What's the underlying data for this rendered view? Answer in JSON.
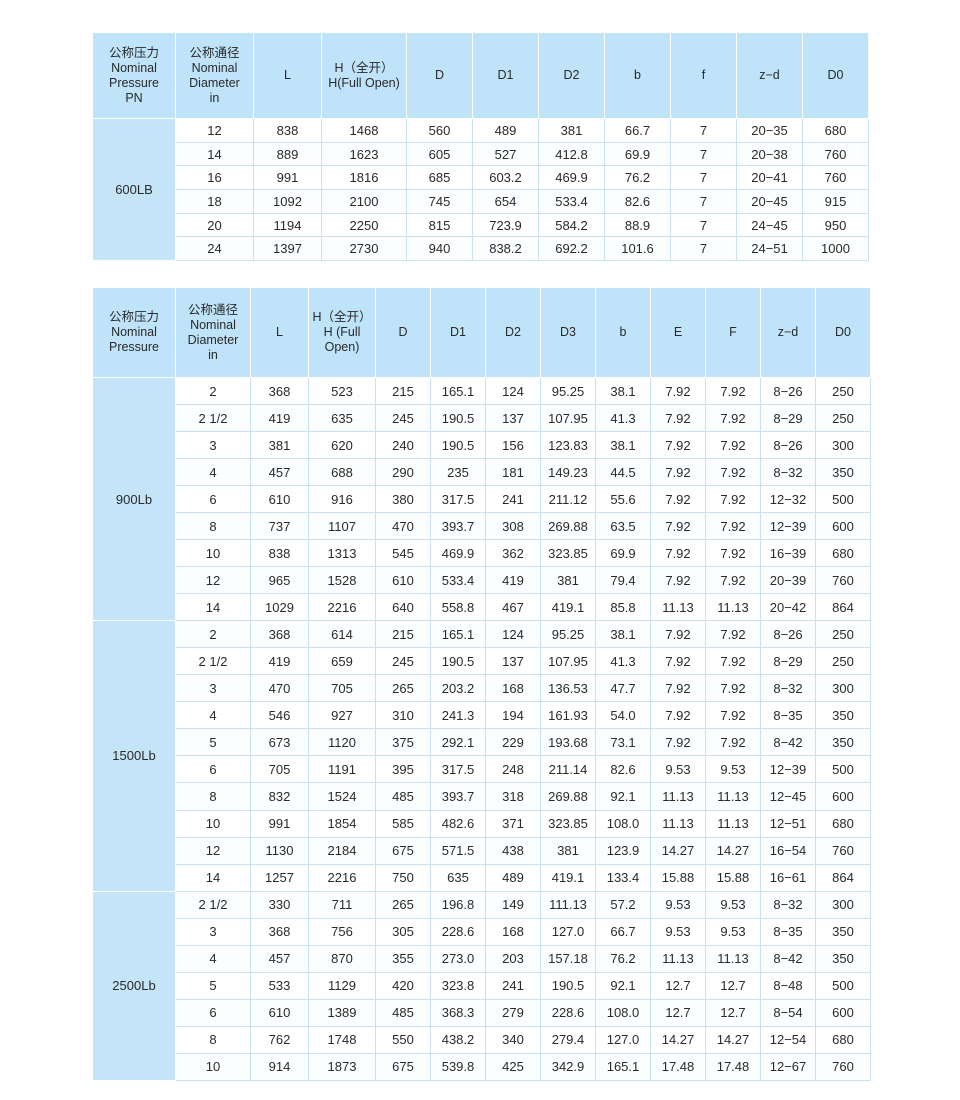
{
  "tables": [
    {
      "headers": [
        [
          "公称压力",
          "Nominal",
          "Pressure",
          "PN"
        ],
        [
          "公称通径",
          "Nominal",
          "Diameter",
          "in"
        ],
        [
          "L"
        ],
        [
          "H（全开）",
          "H(Full Open)"
        ],
        [
          "D"
        ],
        [
          "D1"
        ],
        [
          "D2"
        ],
        [
          "b"
        ],
        [
          "f"
        ],
        [
          "z−d"
        ],
        [
          "D0"
        ]
      ],
      "groups": [
        {
          "label": "600LB",
          "rows": [
            [
              "12",
              "838",
              "1468",
              "560",
              "489",
              "381",
              "66.7",
              "7",
              "20−35",
              "680"
            ],
            [
              "14",
              "889",
              "1623",
              "605",
              "527",
              "412.8",
              "69.9",
              "7",
              "20−38",
              "760"
            ],
            [
              "16",
              "991",
              "1816",
              "685",
              "603.2",
              "469.9",
              "76.2",
              "7",
              "20−41",
              "760"
            ],
            [
              "18",
              "1092",
              "2100",
              "745",
              "654",
              "533.4",
              "82.6",
              "7",
              "20−45",
              "915"
            ],
            [
              "20",
              "1194",
              "2250",
              "815",
              "723.9",
              "584.2",
              "88.9",
              "7",
              "24−45",
              "950"
            ],
            [
              "24",
              "1397",
              "2730",
              "940",
              "838.2",
              "692.2",
              "101.6",
              "7",
              "24−51",
              "1000"
            ]
          ]
        }
      ]
    },
    {
      "headers": [
        [
          "公称压力",
          "Nominal",
          "Pressure"
        ],
        [
          "公称通径",
          "Nominal",
          "Diameter",
          "in"
        ],
        [
          "L"
        ],
        [
          "H（全开）",
          "H (Full",
          "Open)"
        ],
        [
          "D"
        ],
        [
          "D1"
        ],
        [
          "D2"
        ],
        [
          "D3"
        ],
        [
          "b"
        ],
        [
          "E"
        ],
        [
          "F"
        ],
        [
          "z−d"
        ],
        [
          "D0"
        ]
      ],
      "groups": [
        {
          "label": "900Lb",
          "rows": [
            [
              "2",
              "368",
              "523",
              "215",
              "165.1",
              "124",
              "95.25",
              "38.1",
              "7.92",
              "7.92",
              "8−26",
              "250"
            ],
            [
              "2 1/2",
              "419",
              "635",
              "245",
              "190.5",
              "137",
              "107.95",
              "41.3",
              "7.92",
              "7.92",
              "8−29",
              "250"
            ],
            [
              "3",
              "381",
              "620",
              "240",
              "190.5",
              "156",
              "123.83",
              "38.1",
              "7.92",
              "7.92",
              "8−26",
              "300"
            ],
            [
              "4",
              "457",
              "688",
              "290",
              "235",
              "181",
              "149.23",
              "44.5",
              "7.92",
              "7.92",
              "8−32",
              "350"
            ],
            [
              "6",
              "610",
              "916",
              "380",
              "317.5",
              "241",
              "211.12",
              "55.6",
              "7.92",
              "7.92",
              "12−32",
              "500"
            ],
            [
              "8",
              "737",
              "1107",
              "470",
              "393.7",
              "308",
              "269.88",
              "63.5",
              "7.92",
              "7.92",
              "12−39",
              "600"
            ],
            [
              "10",
              "838",
              "1313",
              "545",
              "469.9",
              "362",
              "323.85",
              "69.9",
              "7.92",
              "7.92",
              "16−39",
              "680"
            ],
            [
              "12",
              "965",
              "1528",
              "610",
              "533.4",
              "419",
              "381",
              "79.4",
              "7.92",
              "7.92",
              "20−39",
              "760"
            ],
            [
              "14",
              "1029",
              "2216",
              "640",
              "558.8",
              "467",
              "419.1",
              "85.8",
              "11.13",
              "11.13",
              "20−42",
              "864"
            ]
          ]
        },
        {
          "label": "1500Lb",
          "rows": [
            [
              "2",
              "368",
              "614",
              "215",
              "165.1",
              "124",
              "95.25",
              "38.1",
              "7.92",
              "7.92",
              "8−26",
              "250"
            ],
            [
              "2 1/2",
              "419",
              "659",
              "245",
              "190.5",
              "137",
              "107.95",
              "41.3",
              "7.92",
              "7.92",
              "8−29",
              "250"
            ],
            [
              "3",
              "470",
              "705",
              "265",
              "203.2",
              "168",
              "136.53",
              "47.7",
              "7.92",
              "7.92",
              "8−32",
              "300"
            ],
            [
              "4",
              "546",
              "927",
              "310",
              "241.3",
              "194",
              "161.93",
              "54.0",
              "7.92",
              "7.92",
              "8−35",
              "350"
            ],
            [
              "5",
              "673",
              "1120",
              "375",
              "292.1",
              "229",
              "193.68",
              "73.1",
              "7.92",
              "7.92",
              "8−42",
              "350"
            ],
            [
              "6",
              "705",
              "1191",
              "395",
              "317.5",
              "248",
              "211.14",
              "82.6",
              "9.53",
              "9.53",
              "12−39",
              "500"
            ],
            [
              "8",
              "832",
              "1524",
              "485",
              "393.7",
              "318",
              "269.88",
              "92.1",
              "11.13",
              "11.13",
              "12−45",
              "600"
            ],
            [
              "10",
              "991",
              "1854",
              "585",
              "482.6",
              "371",
              "323.85",
              "108.0",
              "11.13",
              "11.13",
              "12−51",
              "680"
            ],
            [
              "12",
              "1130",
              "2184",
              "675",
              "571.5",
              "438",
              "381",
              "123.9",
              "14.27",
              "14.27",
              "16−54",
              "760"
            ],
            [
              "14",
              "1257",
              "2216",
              "750",
              "635",
              "489",
              "419.1",
              "133.4",
              "15.88",
              "15.88",
              "16−61",
              "864"
            ]
          ]
        },
        {
          "label": "2500Lb",
          "rows": [
            [
              "2 1/2",
              "330",
              "711",
              "265",
              "196.8",
              "149",
              "111.13",
              "57.2",
              "9.53",
              "9.53",
              "8−32",
              "300"
            ],
            [
              "3",
              "368",
              "756",
              "305",
              "228.6",
              "168",
              "127.0",
              "66.7",
              "9.53",
              "9.53",
              "8−35",
              "350"
            ],
            [
              "4",
              "457",
              "870",
              "355",
              "273.0",
              "203",
              "157.18",
              "76.2",
              "11.13",
              "11.13",
              "8−42",
              "350"
            ],
            [
              "5",
              "533",
              "1129",
              "420",
              "323.8",
              "241",
              "190.5",
              "92.1",
              "12.7",
              "12.7",
              "8−48",
              "500"
            ],
            [
              "6",
              "610",
              "1389",
              "485",
              "368.3",
              "279",
              "228.6",
              "108.0",
              "12.7",
              "12.7",
              "8−54",
              "600"
            ],
            [
              "8",
              "762",
              "1748",
              "550",
              "438.2",
              "340",
              "279.4",
              "127.0",
              "14.27",
              "14.27",
              "12−54",
              "680"
            ],
            [
              "10",
              "914",
              "1873",
              "675",
              "539.8",
              "425",
              "342.9",
              "165.1",
              "17.48",
              "17.48",
              "12−67",
              "760"
            ]
          ]
        }
      ]
    }
  ]
}
